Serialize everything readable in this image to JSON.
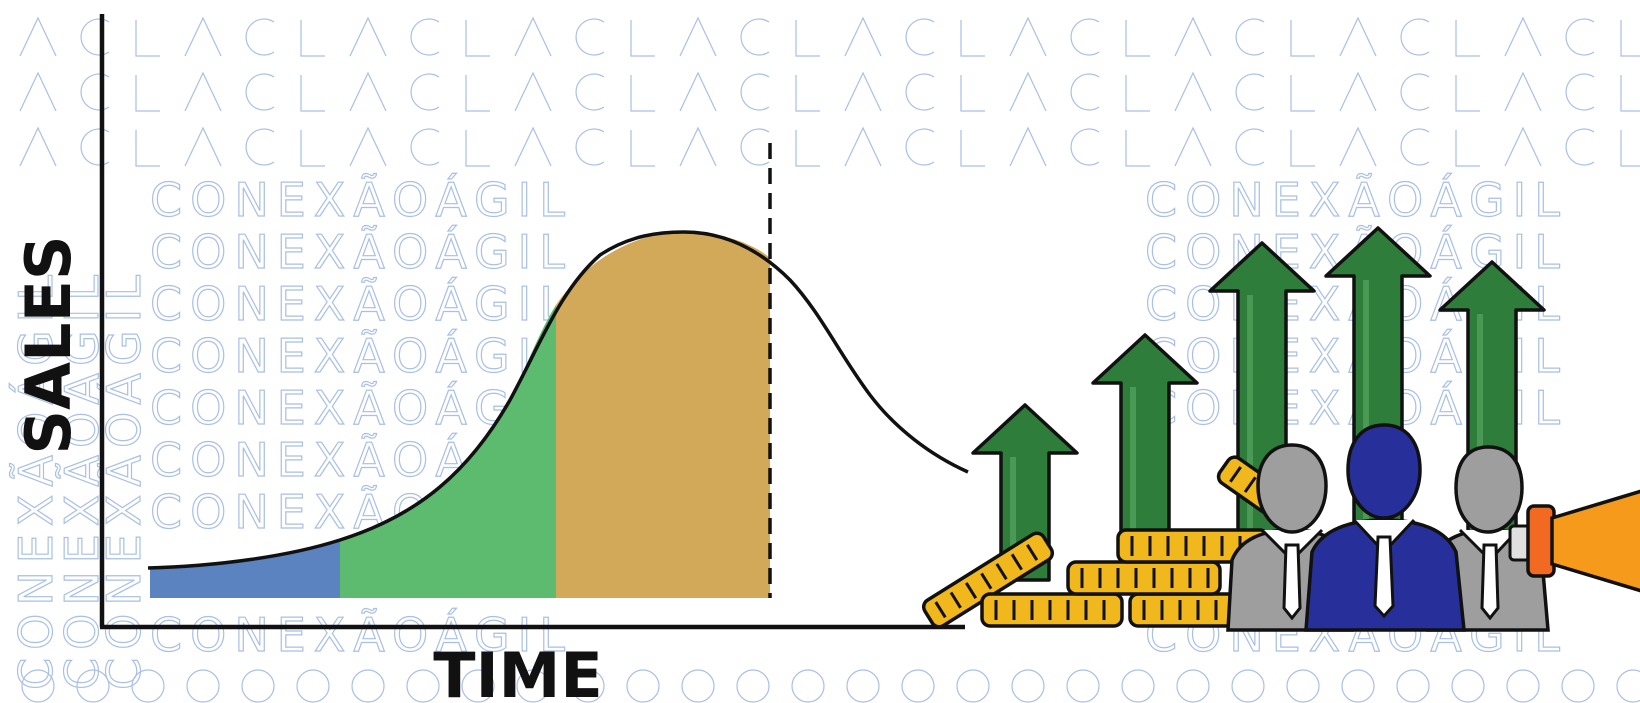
{
  "background": {
    "watermark_text": "CONEXÃOÁGIL",
    "watermark_color": "#a9bfe6"
  },
  "diagram": {
    "x_axis_label": "TIME",
    "y_axis_label": "SALES",
    "stage_colors": [
      "#5a83bf",
      "#5dbb6f",
      "#d2a958"
    ],
    "dashed_marker": true,
    "icons": [
      "growth-arrows-icon",
      "coin-stacks-icon",
      "business-team-icon",
      "megaphone-icon"
    ]
  },
  "colors": {
    "arrow_green": "#2f7d3a",
    "coin_gold": "#f0b81c",
    "leader_blue": "#27309a",
    "person_gray": "#9e9e9e",
    "megaphone_orange": "#f59a1a"
  }
}
